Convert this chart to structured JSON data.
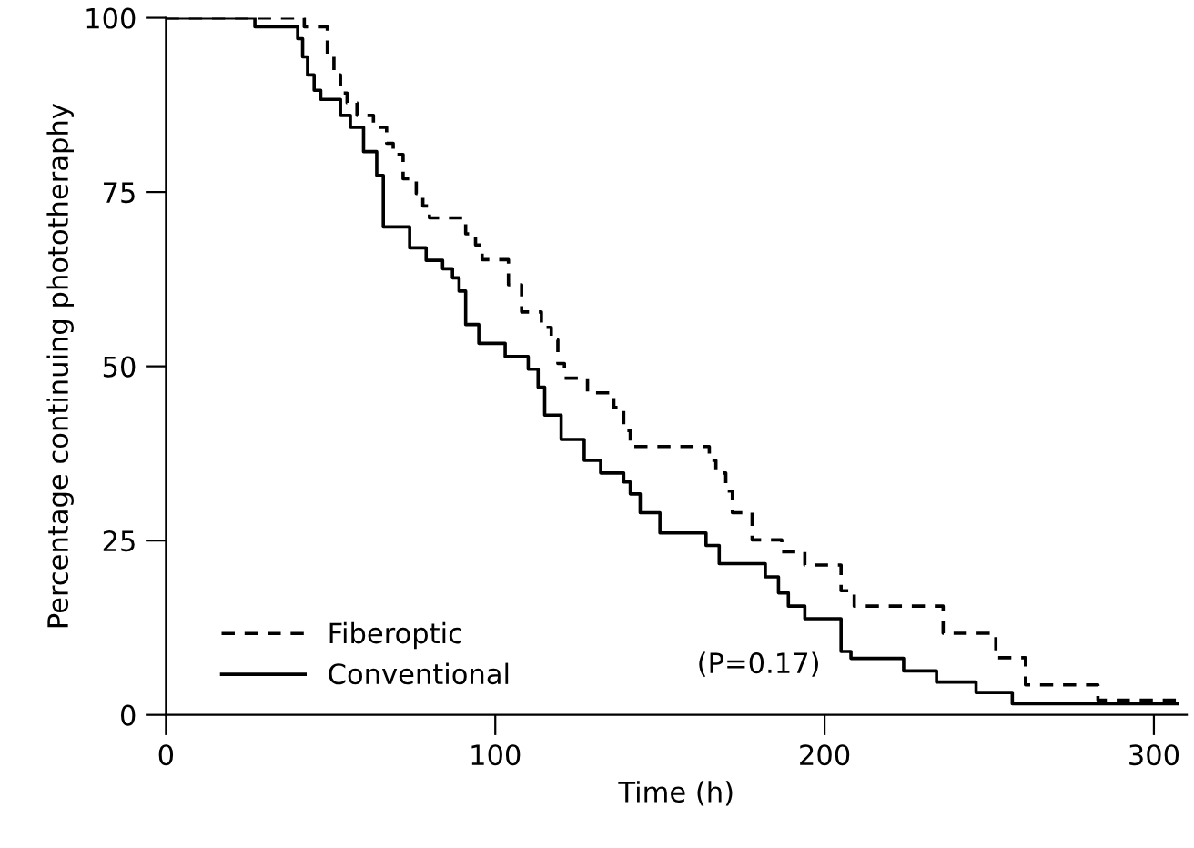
{
  "chart_data": {
    "type": "step",
    "xlabel": "Time (h)",
    "ylabel": "Percentage continuing phototheraphy",
    "xlim": [
      0,
      310
    ],
    "ylim": [
      0,
      100
    ],
    "xticks": [
      0,
      100,
      200,
      300
    ],
    "yticks": [
      0,
      25,
      50,
      75,
      100
    ],
    "grid": false,
    "legend": "bottom left",
    "marker": "none",
    "annotations": [
      "(P=0.17)"
    ],
    "series": [
      {
        "name": "Fiberoptic",
        "color": "#000000",
        "line_style": "dashed",
        "x": [
          0,
          42,
          49,
          51,
          53,
          55,
          58,
          63,
          67,
          69,
          72,
          76,
          78,
          80,
          91,
          94,
          96,
          104,
          108,
          114,
          117,
          119,
          121,
          128,
          136,
          139,
          141,
          165,
          167,
          170,
          172,
          178,
          187,
          194,
          205,
          209,
          236,
          252,
          261,
          283,
          307
        ],
        "values": [
          100,
          98.7,
          94.8,
          91.8,
          89.2,
          87.8,
          86,
          84.3,
          82,
          80.4,
          76.9,
          74.8,
          73,
          71.3,
          69,
          67.4,
          65.3,
          61.7,
          57.8,
          55.6,
          53.8,
          50.4,
          48.3,
          46.2,
          44.1,
          40.8,
          38.5,
          36.5,
          34.7,
          32.1,
          29,
          25.1,
          23.4,
          21.5,
          17.8,
          15.6,
          11.7,
          8.2,
          4.3,
          2.1,
          2.1
        ]
      },
      {
        "name": "Conventional",
        "color": "#000000",
        "line_style": "solid",
        "x": [
          0,
          27,
          40,
          41.5,
          43,
          45,
          47,
          53,
          56,
          60,
          64,
          66,
          74,
          79,
          84,
          87,
          89,
          91,
          95,
          103,
          110,
          113,
          115,
          120,
          127,
          132,
          139,
          141,
          144,
          150,
          164,
          168,
          182,
          186,
          189,
          194,
          205,
          208,
          224,
          234,
          246,
          257,
          307
        ],
        "values": [
          100,
          98.7,
          97,
          94.4,
          91.8,
          89.6,
          88.3,
          86,
          84.3,
          80.8,
          77.4,
          70,
          67,
          65.2,
          64,
          62.7,
          60.8,
          56,
          53.3,
          51.4,
          49.6,
          47,
          43,
          39.5,
          36.5,
          34.7,
          33.4,
          31.7,
          29,
          26.1,
          24.3,
          21.7,
          19.8,
          17.5,
          15.6,
          13.8,
          9.1,
          8.1,
          6.3,
          4.7,
          3.2,
          1.6,
          1.6
        ]
      }
    ]
  }
}
